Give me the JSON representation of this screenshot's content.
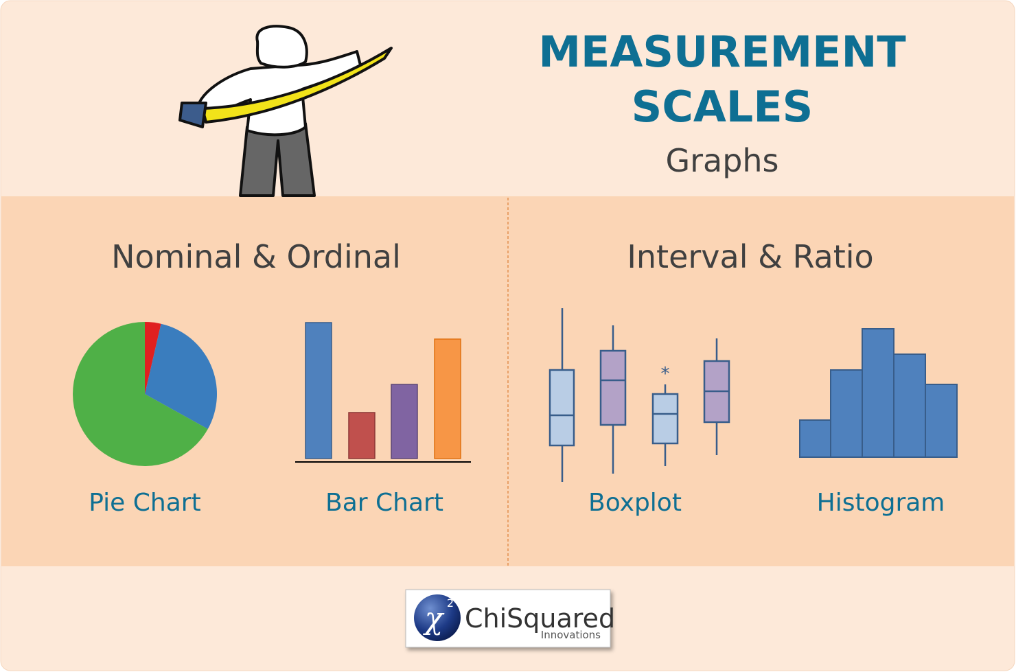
{
  "header": {
    "title_line1": "MEASUREMENT",
    "title_line2": "SCALES",
    "subtitle": "Graphs"
  },
  "sections": [
    {
      "heading": "Nominal & Ordinal",
      "items": [
        "Pie Chart",
        "Bar Chart"
      ]
    },
    {
      "heading": "Interval & Ratio",
      "items": [
        "Boxplot",
        "Histogram"
      ]
    }
  ],
  "outlier_marker": "*",
  "logo": {
    "symbol": "χ",
    "superscript": "2",
    "name": "ChiSquared",
    "tagline": "Innovations"
  }
}
